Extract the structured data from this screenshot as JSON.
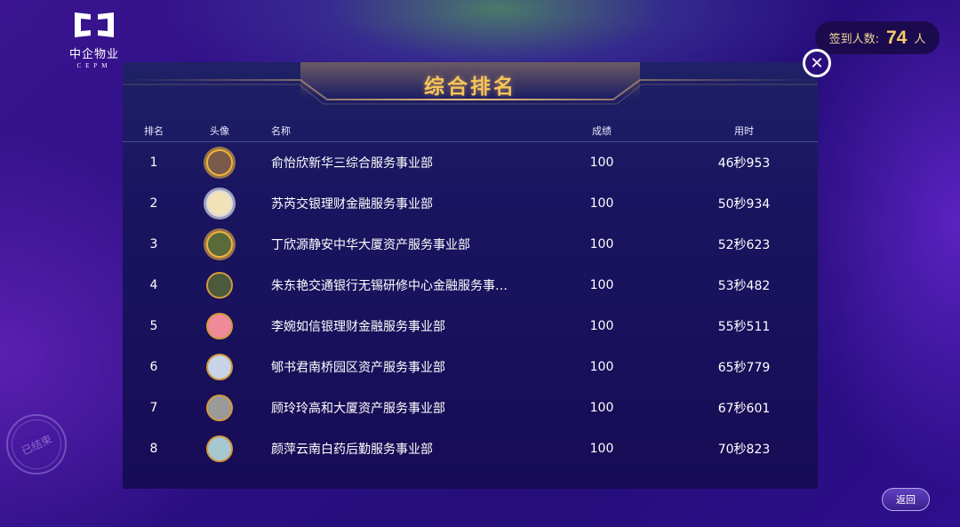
{
  "logo": {
    "cn": "中企物业",
    "en": "CEPM"
  },
  "signin": {
    "label": "签到人数:",
    "count": "74",
    "unit": "人"
  },
  "title": "综合排名",
  "columns": {
    "rank": "排名",
    "avatar": "头像",
    "name": "名称",
    "score": "成绩",
    "time": "用时"
  },
  "rows": [
    {
      "rank": "1",
      "name": "俞怡欣新华三综合服务事业部",
      "score": "100",
      "time": "46秒953",
      "avatar_color": "#7a5a4a"
    },
    {
      "rank": "2",
      "name": "苏芮交银理财金融服务事业部",
      "score": "100",
      "time": "50秒934",
      "avatar_color": "#f2e2b8"
    },
    {
      "rank": "3",
      "name": "丁欣源静安中华大厦资产服务事业部",
      "score": "100",
      "time": "52秒623",
      "avatar_color": "#5a6a3a"
    },
    {
      "rank": "4",
      "name": "朱东艳交通银行无锡研修中心金融服务事…",
      "score": "100",
      "time": "53秒482",
      "avatar_color": "#4a5a3a"
    },
    {
      "rank": "5",
      "name": "李婉如信银理财金融服务事业部",
      "score": "100",
      "time": "55秒511",
      "avatar_color": "#f08a9a"
    },
    {
      "rank": "6",
      "name": "郇书君南桥园区资产服务事业部",
      "score": "100",
      "time": "65秒779",
      "avatar_color": "#c8d4e8"
    },
    {
      "rank": "7",
      "name": "顾玲玲高和大厦资产服务事业部",
      "score": "100",
      "time": "67秒601",
      "avatar_color": "#9a9a9a"
    },
    {
      "rank": "8",
      "name": "颜萍云南白药后勤服务事业部",
      "score": "100",
      "time": "70秒823",
      "avatar_color": "#a8c8d0"
    }
  ],
  "stamp": "已结束",
  "back_label": "返回",
  "colors": {
    "accent_gold": "#f6c45a",
    "background": "#2a0f82"
  }
}
